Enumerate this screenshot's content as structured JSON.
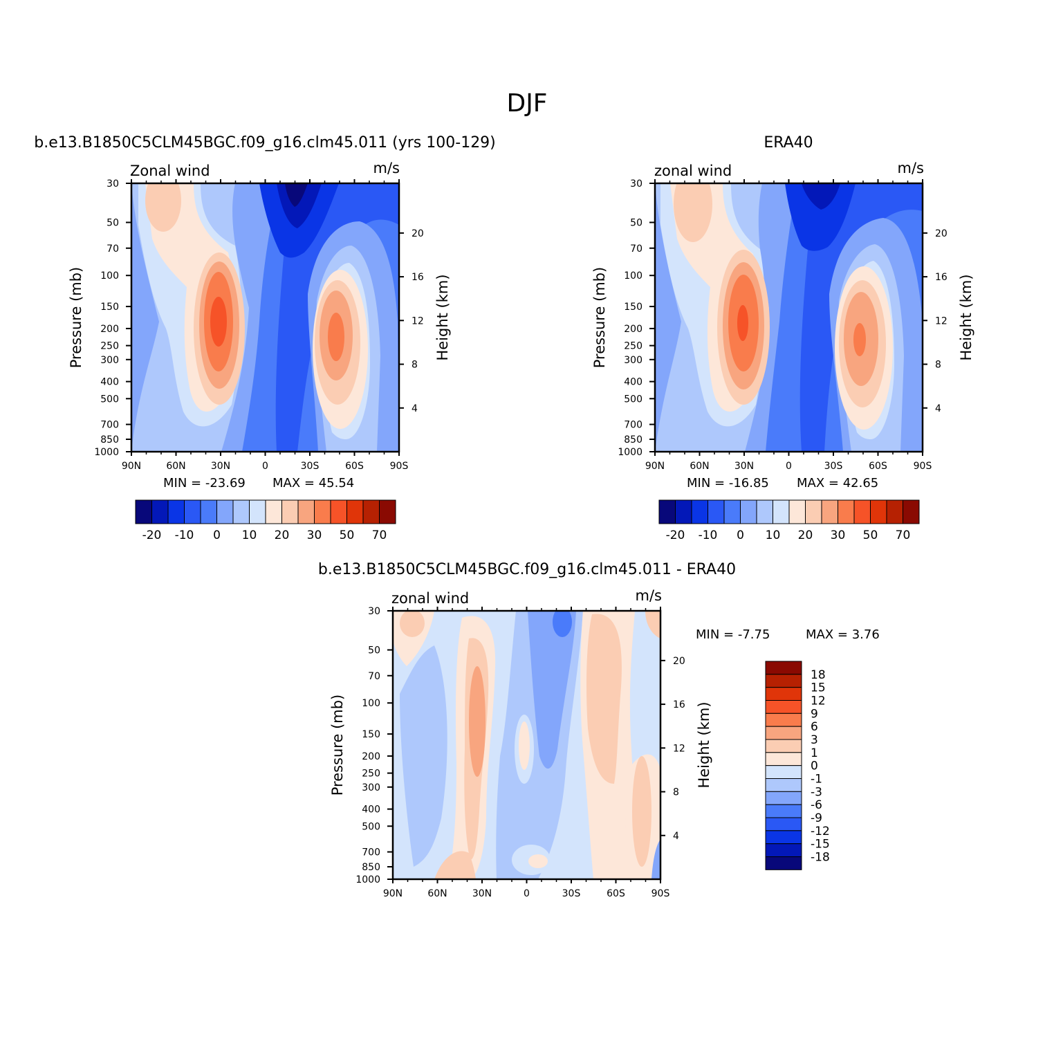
{
  "figure": {
    "title": "DJF",
    "panels": {
      "model": {
        "title": "b.e13.B1850C5CLM45BGC.f09_g16.clm45.011 (yrs 100-129)",
        "left_label": "Zonal wind",
        "right_label": "m/s",
        "min_text": "MIN = -23.69",
        "max_text": "MAX = 45.54"
      },
      "obs": {
        "title": "ERA40",
        "left_label": "zonal wind",
        "right_label": "m/s",
        "min_text": "MIN = -16.85",
        "max_text": "MAX = 42.65"
      },
      "diff": {
        "title": "b.e13.B1850C5CLM45BGC.f09_g16.clm45.011 - ERA40",
        "left_label": "zonal wind",
        "right_label": "m/s",
        "min_text": "MIN = -7.75",
        "max_text": "MAX = 3.76"
      }
    },
    "axes": {
      "ylabel": "Pressure (mb)",
      "y2label": "Height (km)"
    }
  },
  "chart_data": [
    {
      "type": "heatmap",
      "subtype": "filled-contour",
      "id": "model",
      "title": "b.e13.B1850C5CLM45BGC.f09_g16.clm45.011 (yrs 100-129)",
      "variable": "Zonal wind",
      "units": "m/s",
      "xlabel": "",
      "ylabel": "Pressure (mb)",
      "y2label": "Height (km)",
      "xlim": [
        90,
        -90
      ],
      "ylim": [
        1000,
        30
      ],
      "x_ticks": [
        90,
        60,
        30,
        0,
        -30,
        -60,
        -90
      ],
      "x_tick_labels": [
        "90N",
        "60N",
        "30N",
        "0",
        "30S",
        "60S",
        "90S"
      ],
      "y_ticks": [
        30,
        50,
        70,
        100,
        150,
        200,
        250,
        300,
        400,
        500,
        700,
        850,
        1000
      ],
      "y_tick_labels": [
        "30",
        "50",
        "70",
        "100",
        "150",
        "200",
        "250",
        "300",
        "400",
        "500",
        "700",
        "850",
        "1000"
      ],
      "y2_ticks_km": [
        4,
        8,
        12,
        16,
        20
      ],
      "y2_tick_labels": [
        "4",
        "8",
        "12",
        "16",
        "20"
      ],
      "min": -23.69,
      "max": 45.54,
      "features": [
        {
          "name": "NH subtropical jet",
          "lat": 30,
          "p_mb": 200,
          "value": 45.5
        },
        {
          "name": "SH subtropical jet",
          "lat": -50,
          "p_mb": 250,
          "value": 42
        },
        {
          "name": "tropical easterly max",
          "lat": -20,
          "p_mb": 30,
          "value": -23.7
        }
      ],
      "colorbar": {
        "orientation": "horizontal",
        "levels": [
          -25,
          -20,
          -15,
          -10,
          -5,
          0,
          5,
          10,
          15,
          20,
          25,
          30,
          40,
          50,
          60,
          70
        ],
        "labels": [
          "-20",
          "-10",
          "0",
          "10",
          "20",
          "30",
          "50",
          "70"
        ],
        "colors": [
          "#08087a",
          "#0318b8",
          "#0a35e6",
          "#2a58f5",
          "#4a7bfa",
          "#83a6fb",
          "#aec8fc",
          "#d3e4fc",
          "#fde7d9",
          "#fbcdb3",
          "#f8a57f",
          "#f97c4c",
          "#f65328",
          "#e03509",
          "#b62102",
          "#8a0a02"
        ]
      }
    },
    {
      "type": "heatmap",
      "subtype": "filled-contour",
      "id": "obs",
      "title": "ERA40",
      "variable": "zonal wind",
      "units": "m/s",
      "xlabel": "",
      "ylabel": "Pressure (mb)",
      "y2label": "Height (km)",
      "xlim": [
        90,
        -90
      ],
      "ylim": [
        1000,
        30
      ],
      "x_ticks": [
        90,
        60,
        30,
        0,
        -30,
        -60,
        -90
      ],
      "x_tick_labels": [
        "90N",
        "60N",
        "30N",
        "0",
        "30S",
        "60S",
        "90S"
      ],
      "y_ticks": [
        30,
        50,
        70,
        100,
        150,
        200,
        250,
        300,
        400,
        500,
        700,
        850,
        1000
      ],
      "y_tick_labels": [
        "30",
        "50",
        "70",
        "100",
        "150",
        "200",
        "250",
        "300",
        "400",
        "500",
        "700",
        "850",
        "1000"
      ],
      "y2_ticks_km": [
        4,
        8,
        12,
        16,
        20
      ],
      "y2_tick_labels": [
        "4",
        "8",
        "12",
        "16",
        "20"
      ],
      "min": -16.85,
      "max": 42.65,
      "features": [
        {
          "name": "NH subtropical jet",
          "lat": 30,
          "p_mb": 200,
          "value": 42.6
        },
        {
          "name": "SH subtropical jet",
          "lat": -48,
          "p_mb": 250,
          "value": 38
        },
        {
          "name": "tropical easterly max",
          "lat": -18,
          "p_mb": 30,
          "value": -16.9
        }
      ],
      "colorbar": {
        "orientation": "horizontal",
        "levels": [
          -25,
          -20,
          -15,
          -10,
          -5,
          0,
          5,
          10,
          15,
          20,
          25,
          30,
          40,
          50,
          60,
          70
        ],
        "labels": [
          "-20",
          "-10",
          "0",
          "10",
          "20",
          "30",
          "50",
          "70"
        ],
        "colors": [
          "#08087a",
          "#0318b8",
          "#0a35e6",
          "#2a58f5",
          "#4a7bfa",
          "#83a6fb",
          "#aec8fc",
          "#d3e4fc",
          "#fde7d9",
          "#fbcdb3",
          "#f8a57f",
          "#f97c4c",
          "#f65328",
          "#e03509",
          "#b62102",
          "#8a0a02"
        ]
      }
    },
    {
      "type": "heatmap",
      "subtype": "filled-contour",
      "id": "diff",
      "title": "b.e13.B1850C5CLM45BGC.f09_g16.clm45.011 - ERA40",
      "variable": "zonal wind",
      "units": "m/s",
      "xlabel": "",
      "ylabel": "Pressure (mb)",
      "y2label": "Height (km)",
      "xlim": [
        90,
        -90
      ],
      "ylim": [
        1000,
        30
      ],
      "x_ticks": [
        90,
        60,
        30,
        0,
        -30,
        -60,
        -90
      ],
      "x_tick_labels": [
        "90N",
        "60N",
        "30N",
        "0",
        "30S",
        "60S",
        "90S"
      ],
      "y_ticks": [
        30,
        50,
        70,
        100,
        150,
        200,
        250,
        300,
        400,
        500,
        700,
        850,
        1000
      ],
      "y_tick_labels": [
        "30",
        "50",
        "70",
        "100",
        "150",
        "200",
        "250",
        "300",
        "400",
        "500",
        "700",
        "850",
        "1000"
      ],
      "y2_ticks_km": [
        4,
        8,
        12,
        16,
        20
      ],
      "y2_tick_labels": [
        "4",
        "8",
        "12",
        "16",
        "20"
      ],
      "min": -7.75,
      "max": 3.76,
      "features": [
        {
          "name": "positive band near 30N",
          "lat": 28,
          "p_mb": 150,
          "value": 3.76
        },
        {
          "name": "negative band 0-20S",
          "lat": -12,
          "p_mb": 200,
          "value": -5
        },
        {
          "name": "negative core near 20S",
          "lat": -20,
          "p_mb": 35,
          "value": -7.75
        }
      ],
      "colorbar": {
        "orientation": "vertical",
        "levels": [
          -18,
          -15,
          -12,
          -9,
          -6,
          -3,
          -1,
          0,
          1,
          3,
          6,
          9,
          12,
          15,
          18
        ],
        "labels": [
          "18",
          "15",
          "12",
          "9",
          "6",
          "3",
          "1",
          "0",
          "-1",
          "-3",
          "-6",
          "-9",
          "-12",
          "-15",
          "-18"
        ],
        "colors": [
          "#8a0a02",
          "#b62102",
          "#e03509",
          "#f65328",
          "#f97c4c",
          "#f8a57f",
          "#fbcdb3",
          "#fde7d9",
          "#d3e4fc",
          "#aec8fc",
          "#83a6fb",
          "#4a7bfa",
          "#2a58f5",
          "#0a35e6",
          "#0318b8",
          "#08087a"
        ]
      }
    }
  ]
}
